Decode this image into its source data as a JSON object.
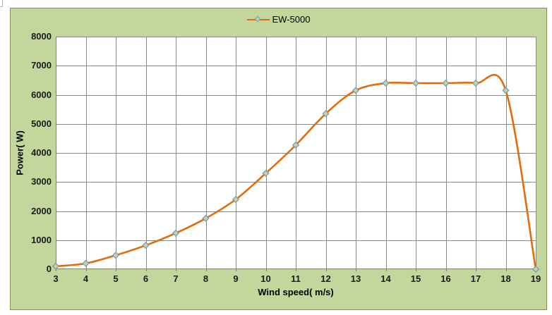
{
  "chart": {
    "colors": {
      "chart_background": "#c3d69b",
      "chart_border": "#7f9355",
      "plot_background": "#ffffff",
      "gridline": "#898989",
      "axis": "#808080",
      "series": "#e36c0a",
      "marker_fill": "#c6d6a2",
      "marker_stroke": "#7b9ab8",
      "text": "#1a1a1a"
    },
    "legend": {
      "position": "top-center"
    }
  },
  "chart_data": {
    "type": "line",
    "title": "",
    "smooth": true,
    "grid": true,
    "legend_position": "top-center",
    "x": [
      3,
      4,
      5,
      6,
      7,
      8,
      9,
      10,
      11,
      12,
      13,
      14,
      15,
      16,
      17,
      18,
      19
    ],
    "x_ticks": [
      "3",
      "4",
      "5",
      "6",
      "7",
      "8",
      "9",
      "10",
      "11",
      "12",
      "13",
      "14",
      "15",
      "16",
      "17",
      "18",
      "19"
    ],
    "y_ticks": [
      "0",
      "1000",
      "2000",
      "3000",
      "4000",
      "5000",
      "6000",
      "7000",
      "8000"
    ],
    "series": [
      {
        "name": "EW-5000",
        "marker": "diamond",
        "values": [
          100,
          200,
          480,
          820,
          1240,
          1750,
          2400,
          3300,
          4270,
          5350,
          6150,
          6400,
          6400,
          6400,
          6400,
          6150,
          0
        ]
      }
    ],
    "xlabel": "Wind speed( m/s)",
    "ylabel": "Power( W)",
    "xlim": [
      3,
      19
    ],
    "ylim": [
      0,
      8000
    ],
    "ytick_step": 1000
  }
}
